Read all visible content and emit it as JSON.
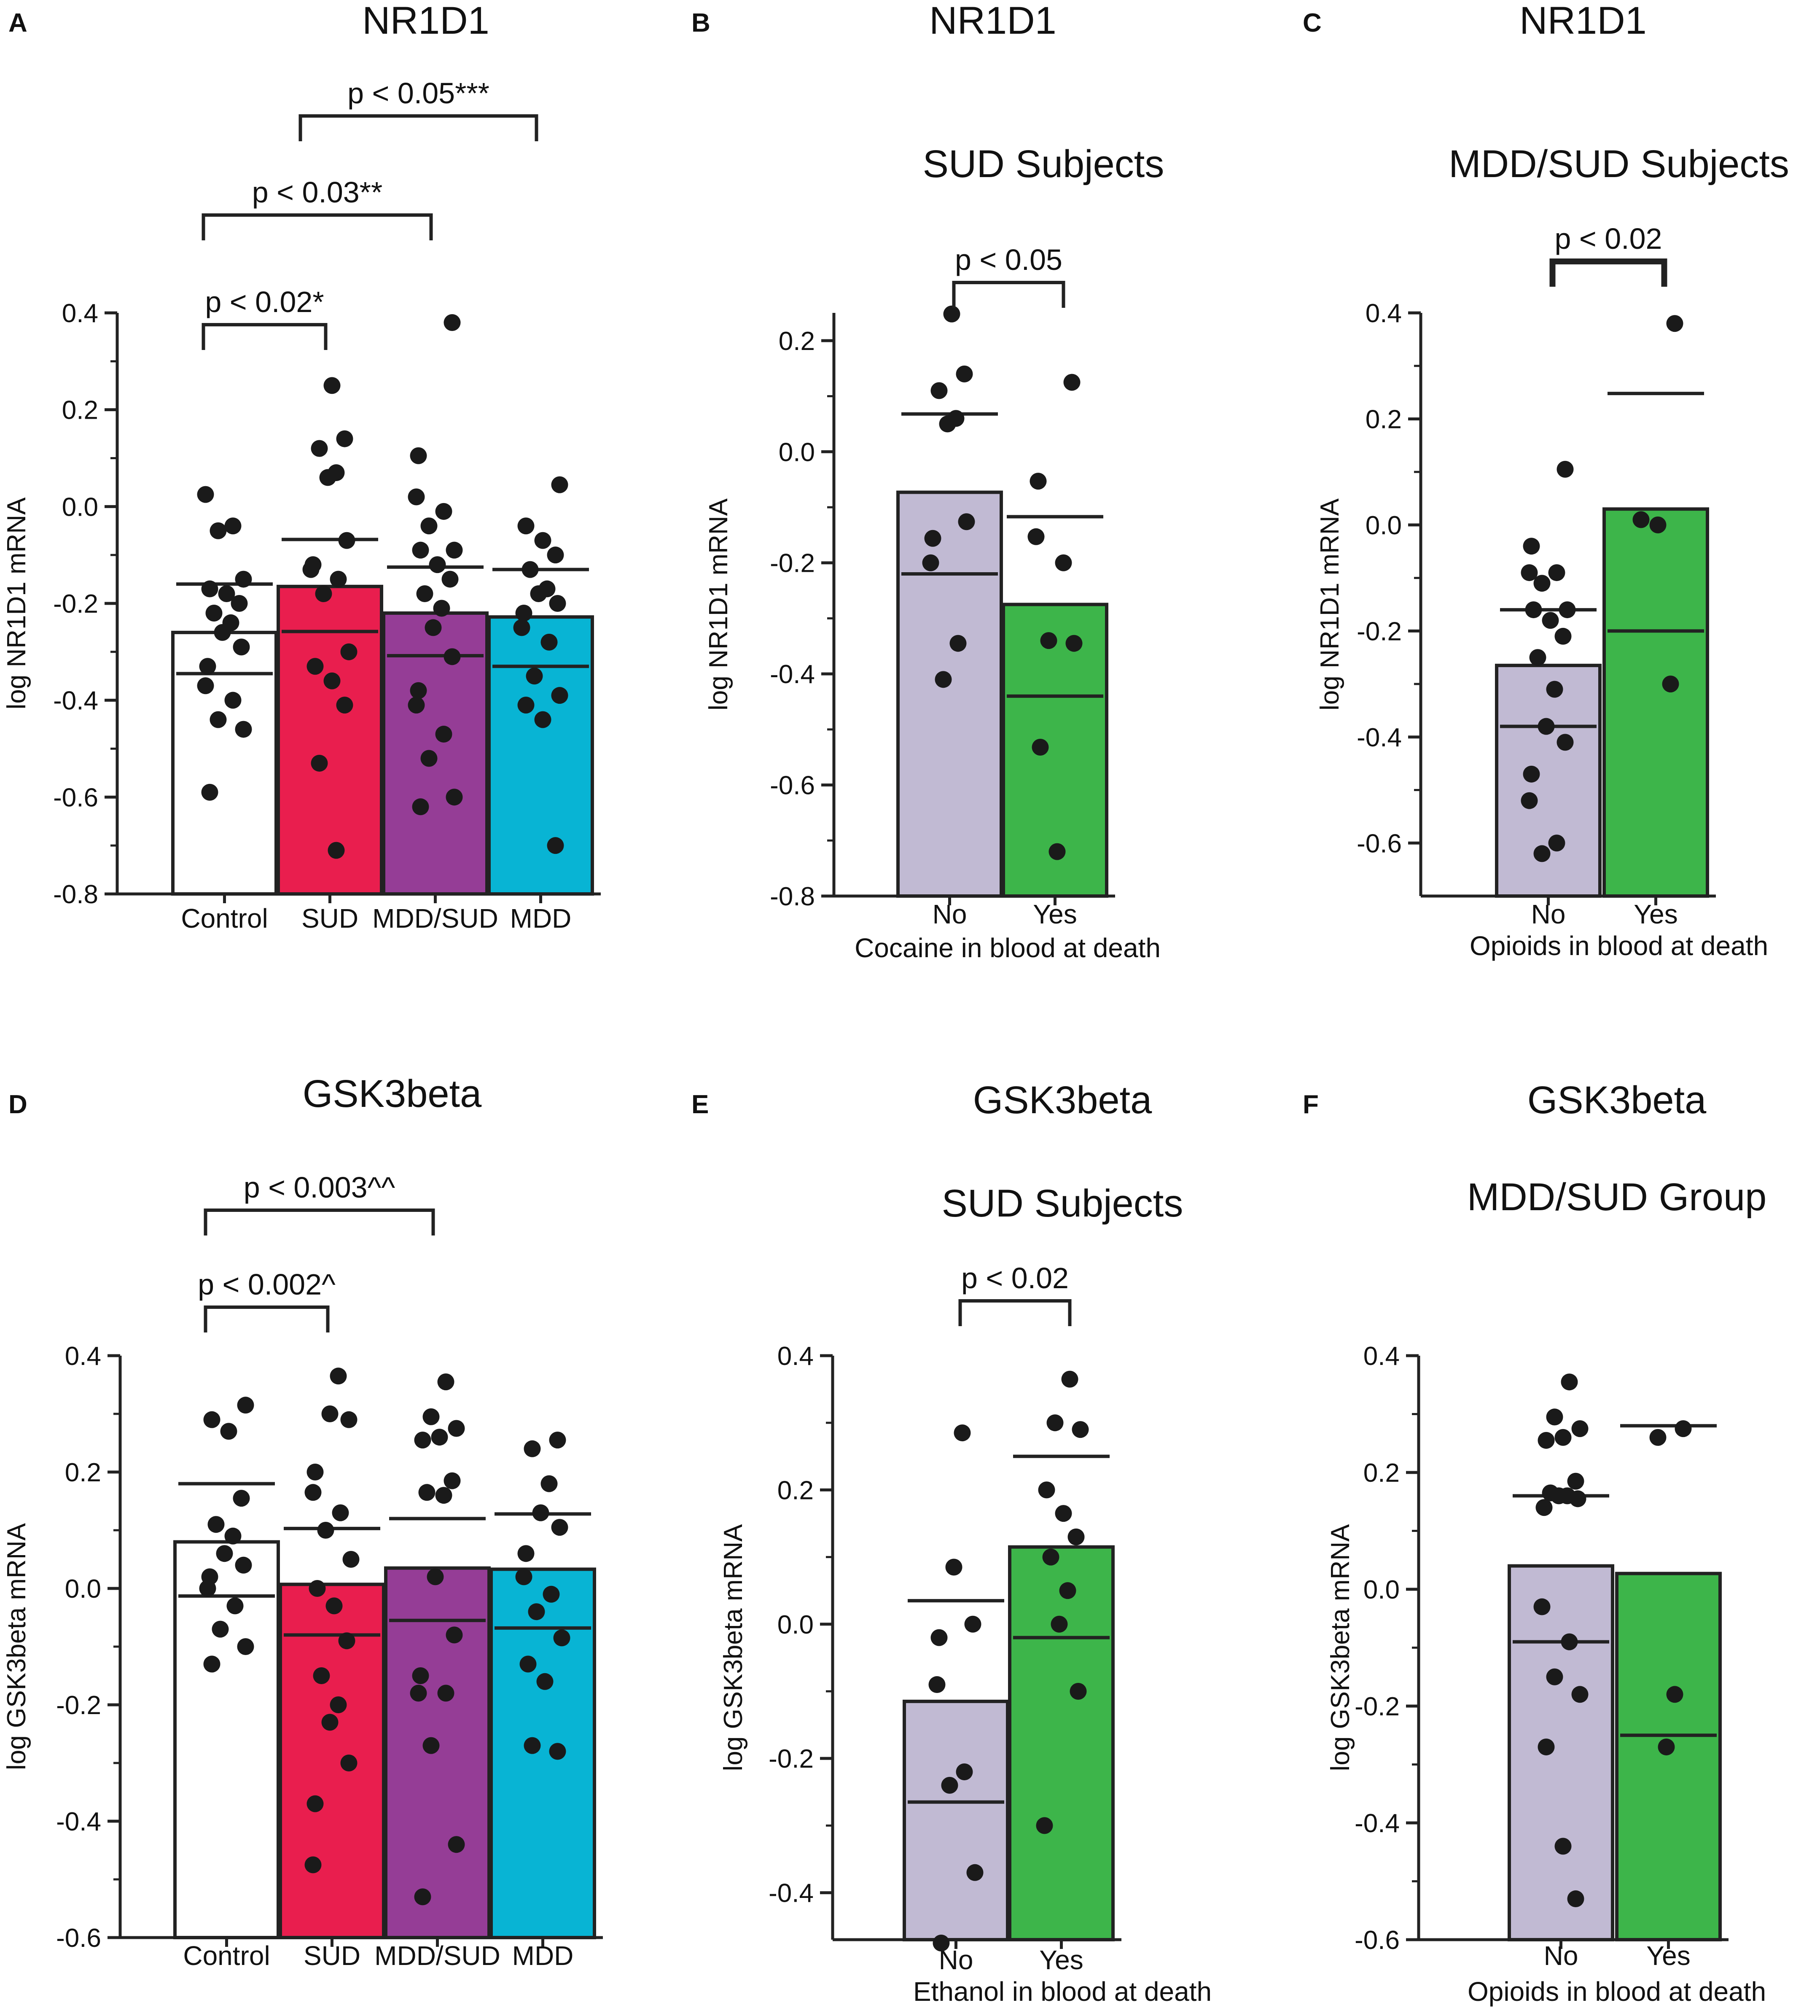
{
  "chart_data": [
    {
      "panel": "A",
      "type": "bar",
      "title": "NR1D1",
      "subtitle": "",
      "ylabel": "log NR1D1 mRNA",
      "xlabel": "",
      "ylim": [
        -0.8,
        0.4
      ],
      "yticks": [
        "0.4",
        "0.2",
        "0.0",
        "-0.2",
        "-0.4",
        "-0.6",
        "-0.8"
      ],
      "categories": [
        "Control",
        "SUD",
        "MDD/SUD",
        "MDD"
      ],
      "colors": [
        "#ffffff",
        "#e91e4e",
        "#953d96",
        "#08b4d4"
      ],
      "values": [
        -0.26,
        -0.165,
        -0.22,
        -0.228
      ],
      "sem_upper": [
        -0.16,
        -0.068,
        -0.125,
        -0.13
      ],
      "sem_lower": [
        -0.345,
        -0.258,
        -0.308,
        -0.33
      ],
      "points": [
        [
          0.025,
          -0.04,
          -0.05,
          -0.15,
          -0.17,
          -0.18,
          -0.2,
          -0.22,
          -0.24,
          -0.26,
          -0.29,
          -0.33,
          -0.37,
          -0.4,
          -0.44,
          -0.46,
          -0.59
        ],
        [
          0.25,
          0.14,
          0.12,
          0.07,
          0.06,
          -0.07,
          -0.12,
          -0.13,
          -0.15,
          -0.18,
          -0.3,
          -0.33,
          -0.36,
          -0.41,
          -0.53,
          -0.71
        ],
        [
          0.38,
          0.105,
          0.02,
          -0.01,
          -0.04,
          -0.09,
          -0.09,
          -0.12,
          -0.15,
          -0.18,
          -0.21,
          -0.25,
          -0.31,
          -0.38,
          -0.41,
          -0.47,
          -0.52,
          -0.6,
          -0.62
        ],
        [
          0.045,
          -0.04,
          -0.07,
          -0.1,
          -0.13,
          -0.17,
          -0.18,
          -0.2,
          -0.22,
          -0.25,
          -0.28,
          -0.35,
          -0.39,
          -0.41,
          -0.44,
          -0.7
        ]
      ],
      "brackets": [
        {
          "label": "p < 0.02*",
          "from": 0,
          "to": 1
        },
        {
          "label": "p < 0.03**",
          "from": 0,
          "to": 2
        },
        {
          "label": "p < 0.05***",
          "from": 1,
          "to": 3
        }
      ]
    },
    {
      "panel": "B",
      "type": "bar",
      "title": "NR1D1",
      "subtitle": "SUD Subjects",
      "ylabel": "log NR1D1 mRNA",
      "xlabel": "Cocaine in blood at death",
      "ylim": [
        -0.8,
        0.25
      ],
      "yticks": [
        "0.2",
        "0.0",
        "-0.2",
        "-0.4",
        "-0.6",
        "-0.8"
      ],
      "categories": [
        "No",
        "Yes"
      ],
      "colors": [
        "#c1bad3",
        "#3db54a"
      ],
      "values": [
        -0.073,
        -0.275
      ],
      "sem_upper": [
        0.068,
        -0.117
      ],
      "sem_lower": [
        -0.22,
        -0.44
      ],
      "points": [
        [
          0.248,
          0.14,
          0.11,
          0.06,
          0.05,
          -0.126,
          -0.156,
          -0.2,
          -0.345,
          -0.41
        ],
        [
          0.125,
          -0.053,
          -0.153,
          -0.2,
          -0.34,
          -0.345,
          -0.532,
          -0.72
        ]
      ],
      "brackets": [
        {
          "label": "p < 0.05",
          "from": 0,
          "to": 1
        }
      ]
    },
    {
      "panel": "C",
      "type": "bar",
      "title": "NR1D1",
      "subtitle": "MDD/SUD Subjects",
      "ylabel": "log NR1D1 mRNA",
      "xlabel": "Opioids in blood at death",
      "ylim": [
        -0.7,
        0.4
      ],
      "yticks": [
        "0.4",
        "0.2",
        "0.0",
        "-0.2",
        "-0.4",
        "-0.6"
      ],
      "categories": [
        "No",
        "Yes"
      ],
      "colors": [
        "#c1bad3",
        "#3db54a"
      ],
      "values": [
        -0.265,
        0.03
      ],
      "sem_upper": [
        -0.16,
        0.248
      ],
      "sem_lower": [
        -0.38,
        -0.2
      ],
      "points": [
        [
          0.105,
          -0.04,
          -0.09,
          -0.09,
          -0.11,
          -0.16,
          -0.16,
          -0.18,
          -0.21,
          -0.25,
          -0.31,
          -0.38,
          -0.41,
          -0.47,
          -0.52,
          -0.6,
          -0.62
        ],
        [
          0.38,
          0.01,
          0.0,
          -0.3
        ]
      ],
      "brackets": [
        {
          "label": "p < 0.02",
          "from": 0,
          "to": 1
        }
      ]
    },
    {
      "panel": "D",
      "type": "bar",
      "title": "GSK3beta",
      "subtitle": "",
      "ylabel": "log GSK3beta mRNA",
      "xlabel": "",
      "ylim": [
        -0.6,
        0.4
      ],
      "yticks": [
        "0.4",
        "0.2",
        "0.0",
        "-0.2",
        "-0.4",
        "-0.6"
      ],
      "categories": [
        "Control",
        "SUD",
        "MDD/SUD",
        "MDD"
      ],
      "colors": [
        "#ffffff",
        "#e91e4e",
        "#953d96",
        "#08b4d4"
      ],
      "values": [
        0.08,
        0.007,
        0.035,
        0.033
      ],
      "sem_upper": [
        0.18,
        0.103,
        0.12,
        0.128
      ],
      "sem_lower": [
        -0.013,
        -0.08,
        -0.055,
        -0.068
      ],
      "points": [
        [
          0.315,
          0.29,
          0.27,
          0.155,
          0.11,
          0.09,
          0.06,
          0.04,
          0.02,
          0.0,
          -0.03,
          -0.07,
          -0.1,
          -0.13
        ],
        [
          0.365,
          0.3,
          0.29,
          0.2,
          0.165,
          0.13,
          0.1,
          0.05,
          0.0,
          -0.03,
          -0.09,
          -0.15,
          -0.2,
          -0.23,
          -0.3,
          -0.37,
          -0.475
        ],
        [
          0.355,
          0.295,
          0.275,
          0.255,
          0.26,
          0.185,
          0.165,
          0.16,
          0.02,
          -0.08,
          -0.15,
          -0.18,
          -0.18,
          -0.27,
          -0.44,
          -0.53
        ],
        [
          0.255,
          0.24,
          0.18,
          0.13,
          0.105,
          0.06,
          0.02,
          -0.01,
          -0.04,
          -0.085,
          -0.13,
          -0.16,
          -0.28,
          -0.27
        ]
      ],
      "brackets": [
        {
          "label": "p < 0.002^",
          "from": 0,
          "to": 1
        },
        {
          "label": "p < 0.003^^",
          "from": 0,
          "to": 2
        }
      ]
    },
    {
      "panel": "E",
      "type": "bar",
      "title": "GSK3beta",
      "subtitle": "SUD Subjects",
      "ylabel": "log GSK3beta mRNA",
      "xlabel": "Ethanol in blood at death",
      "ylim": [
        -0.47,
        0.4
      ],
      "yticks": [
        "0.4",
        "0.2",
        "0.0",
        "-0.2",
        "-0.4"
      ],
      "categories": [
        "No",
        "Yes"
      ],
      "colors": [
        "#c1bad3",
        "#3db54a"
      ],
      "values": [
        -0.115,
        0.115
      ],
      "sem_upper": [
        0.035,
        0.25
      ],
      "sem_lower": [
        -0.265,
        -0.02
      ],
      "points": [
        [
          0.285,
          0.085,
          0.0,
          -0.02,
          -0.09,
          -0.22,
          -0.24,
          -0.37,
          -0.475
        ],
        [
          0.365,
          0.3,
          0.29,
          0.2,
          0.165,
          0.13,
          0.1,
          0.05,
          0.0,
          -0.1,
          -0.3
        ]
      ],
      "brackets": [
        {
          "label": "p < 0.02",
          "from": 0,
          "to": 1
        }
      ]
    },
    {
      "panel": "F",
      "type": "bar",
      "title": "GSK3beta",
      "subtitle": "MDD/SUD Group",
      "ylabel": "log GSK3beta mRNA",
      "xlabel": "Opioids in blood at death",
      "ylim": [
        -0.6,
        0.4
      ],
      "yticks": [
        "0.4",
        "0.2",
        "0.0",
        "-0.2",
        "-0.4",
        "-0.6"
      ],
      "categories": [
        "No",
        "Yes"
      ],
      "colors": [
        "#c1bad3",
        "#3db54a"
      ],
      "values": [
        0.04,
        0.027
      ],
      "sem_upper": [
        0.16,
        0.28
      ],
      "sem_lower": [
        -0.09,
        -0.25
      ],
      "points": [
        [
          0.355,
          0.295,
          0.275,
          0.255,
          0.26,
          0.185,
          0.165,
          0.16,
          0.16,
          0.155,
          0.14,
          -0.03,
          -0.09,
          -0.15,
          -0.18,
          -0.27,
          -0.44,
          -0.53
        ],
        [
          0.275,
          0.26,
          -0.18,
          -0.27
        ]
      ],
      "brackets": []
    }
  ]
}
